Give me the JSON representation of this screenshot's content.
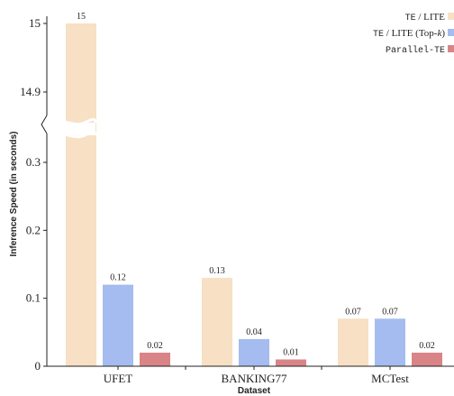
{
  "chart_data": {
    "type": "bar",
    "xlabel": "Dataset",
    "ylabel": "Inference Speed (in seconds)",
    "categories": [
      "UFET",
      "BANKING77",
      "MCTest"
    ],
    "series": [
      {
        "name": "TE / LITE",
        "values": [
          15,
          0.13,
          0.07
        ],
        "labels": [
          "15",
          "0.13",
          "0.07"
        ],
        "color": "#f7e0c4"
      },
      {
        "name": "TE / LITE (Top-k)",
        "values": [
          0.12,
          0.04,
          0.07
        ],
        "labels": [
          "0.12",
          "0.04",
          "0.07"
        ],
        "color": "#a4bcef"
      },
      {
        "name": "Parallel-TE",
        "values": [
          0.02,
          0.01,
          0.02
        ],
        "labels": [
          "0.02",
          "0.01",
          "0.02"
        ],
        "color": "#d98487"
      }
    ],
    "y_axis": {
      "broken": true,
      "lower_range": [
        0,
        0.3
      ],
      "upper_range": [
        14.9,
        15
      ],
      "lower_ticks": [
        {
          "value": 0,
          "label": "0"
        },
        {
          "value": 0.1,
          "label": "0.1"
        },
        {
          "value": 0.2,
          "label": "0.2"
        },
        {
          "value": 0.3,
          "label": "0.3"
        }
      ],
      "upper_ticks": [
        {
          "value": 14.9,
          "label": "14.9"
        },
        {
          "value": 15,
          "label": "15"
        }
      ]
    },
    "legend": {
      "placement": "top-right",
      "entries": [
        {
          "parts": [
            {
              "text": "TE",
              "mono": true
            },
            {
              "text": " / LITE",
              "mono": false
            }
          ]
        },
        {
          "parts": [
            {
              "text": "TE",
              "mono": true
            },
            {
              "text": " / LITE (Top-",
              "mono": false
            },
            {
              "text": "k",
              "mono": false,
              "italic": true
            },
            {
              "text": ")",
              "mono": false
            }
          ]
        },
        {
          "parts": [
            {
              "text": "Parallel-TE",
              "mono": true
            }
          ]
        }
      ]
    },
    "grid": false
  }
}
